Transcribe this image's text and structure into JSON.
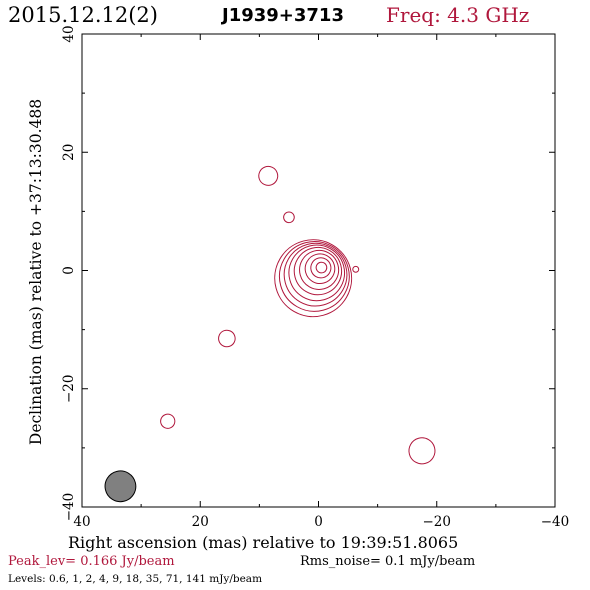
{
  "header": {
    "date": "2015.12.12(2)",
    "source": "J1939+3713",
    "freq": "Freq: 4.3 GHz"
  },
  "footer": {
    "peak": "Peak_lev=  0.166 Jy/beam",
    "rms": "Rms_noise=  0.1 mJy/beam",
    "levels": "Levels: 0.6,   1,   2,   4,   9,  18,  35,  71, 141 mJy/beam"
  },
  "colors": {
    "contour": "#b0173c",
    "beam_fill": "#808080",
    "accent_text": "#b0173c"
  },
  "chart_data": {
    "type": "contour",
    "xlabel": "Right ascension (mas) relative to 19:39:51.8065",
    "ylabel": "Declination (mas) relative to +37:13:30.488",
    "xlim": [
      40,
      -40
    ],
    "ylim": [
      -40,
      40
    ],
    "xticks": [
      40,
      20,
      0,
      -20,
      -40
    ],
    "yticks": [
      -40,
      -20,
      0,
      20,
      40
    ],
    "xtick_labels": [
      "40",
      "20",
      "0",
      "−20",
      "−40"
    ],
    "ytick_labels": [
      "−40",
      "−20",
      "0",
      "20",
      "40"
    ],
    "contour_levels_mjy": [
      0.6,
      1,
      2,
      4,
      9,
      18,
      35,
      71,
      141
    ],
    "core": {
      "ra": -0.5,
      "dec": 0.5,
      "pa_deg": 30,
      "n_levels": 9
    },
    "components": [
      {
        "ra": 8.5,
        "dec": 16,
        "rx": 0.8,
        "ry": 1.6,
        "pa_deg": 25
      },
      {
        "ra": 5.0,
        "dec": 9.0,
        "rx": 0.3,
        "ry": 0.9,
        "pa_deg": 25
      },
      {
        "ra": 15.5,
        "dec": -11.5,
        "rx": 0.6,
        "ry": 1.4,
        "pa_deg": 25
      },
      {
        "ra": 25.5,
        "dec": -25.5,
        "rx": 0.4,
        "ry": 1.2,
        "pa_deg": 25
      },
      {
        "ra": -17.5,
        "dec": -30.5,
        "rx": 0.9,
        "ry": 2.2,
        "pa_deg": 30
      },
      {
        "ra": -6.3,
        "dec": 0.2,
        "rx": 0.5,
        "ry": 0.5,
        "pa_deg": 0
      }
    ],
    "beam": {
      "ra": 33.5,
      "dec": -36.5,
      "major_mas": 5.2,
      "minor_mas": 1.7,
      "pa_deg": 32
    }
  }
}
